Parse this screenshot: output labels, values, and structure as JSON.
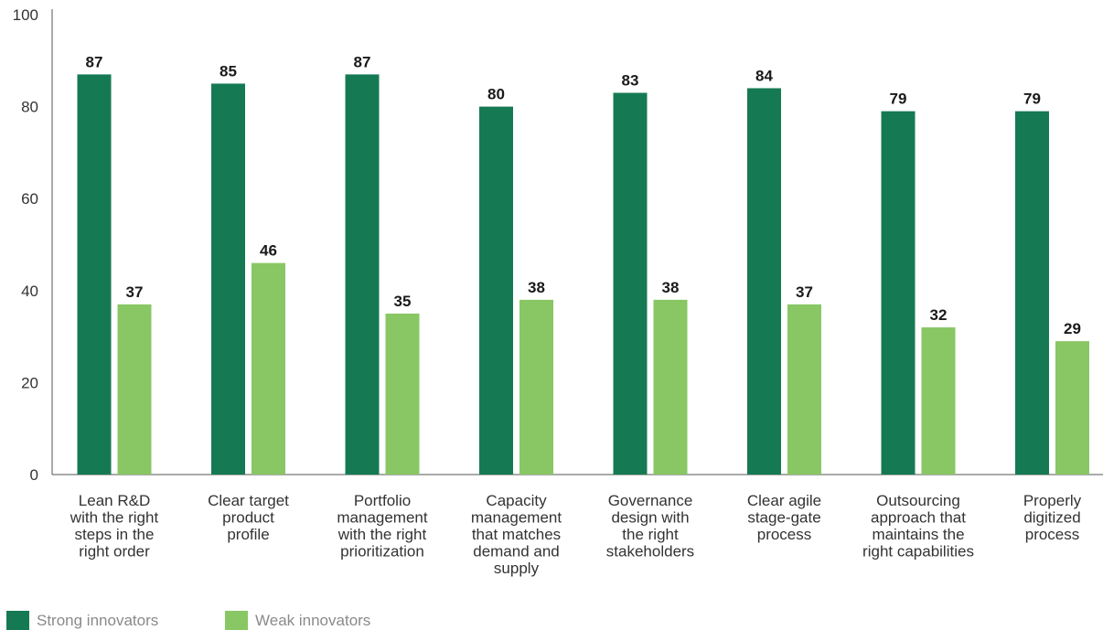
{
  "chart_data": {
    "type": "bar",
    "categories": [
      [
        "Lean R&D",
        "with the right",
        "steps in the",
        "right order"
      ],
      [
        "Clear target",
        "product",
        "profile"
      ],
      [
        "Portfolio",
        "management",
        "with the right",
        "prioritization"
      ],
      [
        "Capacity",
        "management",
        "that matches",
        "demand and",
        "supply"
      ],
      [
        "Governance",
        "design with",
        "the right",
        "stakeholders"
      ],
      [
        "Clear agile",
        "stage-gate",
        "process"
      ],
      [
        "Outsourcing",
        "approach that",
        "maintains the",
        "right capabilities"
      ],
      [
        "Properly",
        "digitized",
        "process"
      ]
    ],
    "series": [
      {
        "name": "Strong innovators",
        "color": "#157a53",
        "values": [
          87,
          85,
          87,
          80,
          83,
          84,
          79,
          79
        ]
      },
      {
        "name": "Weak innovators",
        "color": "#88c764",
        "values": [
          37,
          46,
          35,
          38,
          38,
          37,
          32,
          29
        ]
      }
    ],
    "ylim": [
      0,
      100
    ],
    "yticks": [
      0,
      20,
      40,
      60,
      80,
      100
    ],
    "grid": false,
    "legend": "bottom-left"
  }
}
